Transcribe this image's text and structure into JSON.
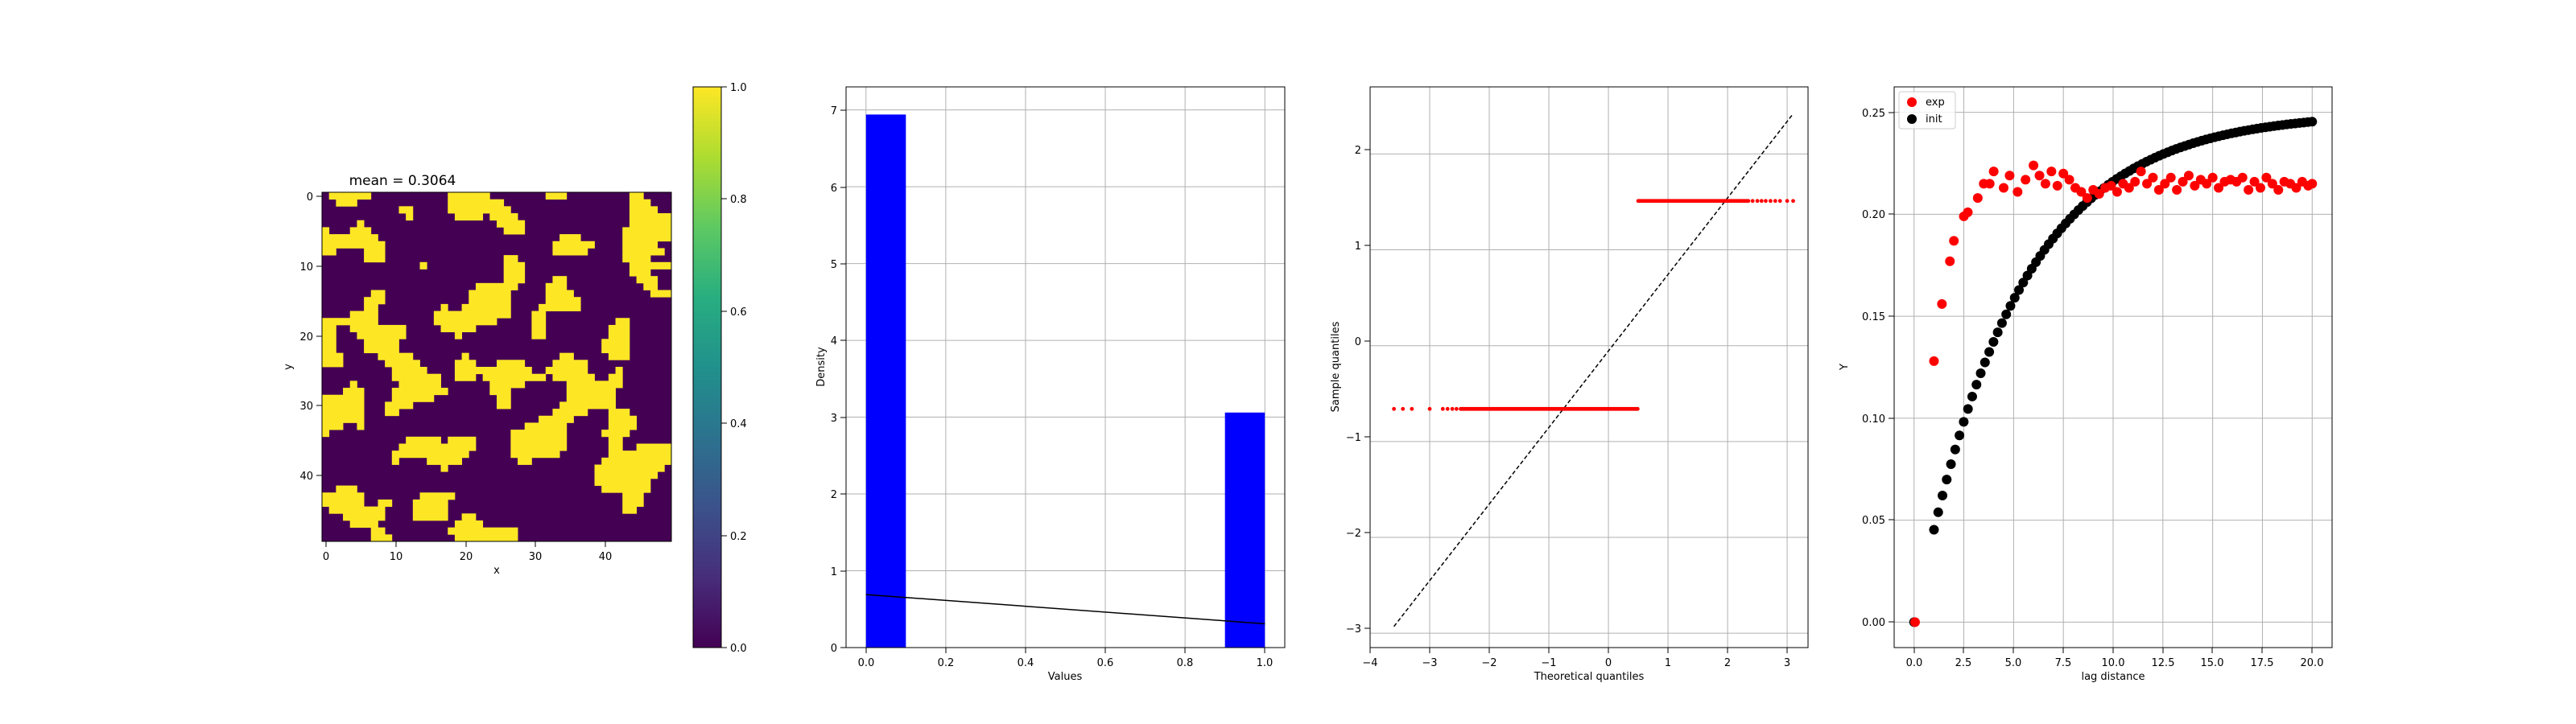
{
  "chart_data": [
    {
      "type": "heatmap",
      "title": "mean = 0.3064",
      "xlabel": "x",
      "ylabel": "y",
      "grid_size": [
        50,
        50
      ],
      "x_ticks": [
        "0",
        "10",
        "20",
        "30",
        "40"
      ],
      "y_ticks": [
        "0",
        "10",
        "20",
        "30",
        "40"
      ],
      "colormap": "viridis",
      "colorbar_ticks": [
        "0.0",
        "0.2",
        "0.4",
        "0.6",
        "0.8",
        "1.0"
      ],
      "clim": [
        0,
        1
      ],
      "values_range": [
        0,
        1
      ],
      "mean": 0.3064,
      "colors": {
        "low": "#440154",
        "high": "#fde725"
      }
    },
    {
      "type": "bar",
      "xlabel": "Values",
      "ylabel": "Density",
      "xlim": [
        -0.05,
        1.05
      ],
      "ylim": [
        0,
        7.3
      ],
      "x_ticks": [
        "0.0",
        "0.2",
        "0.4",
        "0.6",
        "0.8",
        "1.0"
      ],
      "y_ticks": [
        "0",
        "1",
        "2",
        "3",
        "4",
        "5",
        "6",
        "7"
      ],
      "bars": [
        {
          "x0": 0.0,
          "x1": 0.1,
          "value": 6.94
        },
        {
          "x0": 0.9,
          "x1": 1.0,
          "value": 3.06
        }
      ],
      "line": {
        "x": [
          0.0,
          1.0
        ],
        "y": [
          0.69,
          0.31
        ]
      },
      "grid": true,
      "colors": {
        "bar": "#0000ff",
        "line": "#000000"
      }
    },
    {
      "type": "scatter",
      "xlabel": "Theoretical quantiles",
      "ylabel": "Sample quantiles",
      "xlim": [
        -4,
        3.35
      ],
      "ylim": [
        -3.15,
        2.7
      ],
      "x_ticks": [
        "−4",
        "−3",
        "−2",
        "−1",
        "0",
        "1",
        "2",
        "3"
      ],
      "y_ticks": [
        "−3",
        "−2",
        "−1",
        "0",
        "1",
        "2"
      ],
      "low_level": -0.66,
      "high_level": 1.51,
      "low_x_range": [
        -3.6,
        0.5
      ],
      "high_x_range": [
        0.5,
        3.1
      ],
      "reference_line": {
        "x": [
          -3.6,
          3.1
        ],
        "y": [
          -2.93,
          2.42
        ]
      },
      "grid": true,
      "colors": {
        "points": "#ff0000",
        "line": "#000000"
      }
    },
    {
      "type": "scatter",
      "xlabel": "lag distance",
      "ylabel": "Y",
      "xlim": [
        -1.0,
        21.0
      ],
      "ylim": [
        -0.0125,
        0.2625
      ],
      "x_ticks": [
        "0.0",
        "2.5",
        "5.0",
        "7.5",
        "10.0",
        "12.5",
        "15.0",
        "17.5",
        "20.0"
      ],
      "y_ticks": [
        "0.00",
        "0.05",
        "0.10",
        "0.15",
        "0.20",
        "0.25"
      ],
      "legend": {
        "placement": "top-left",
        "entries": [
          "exp",
          "init"
        ]
      },
      "grid": true,
      "series": [
        {
          "name": "exp",
          "color": "#ff0000",
          "points": [
            [
              0.05,
              0.0
            ],
            [
              1.0,
              0.128
            ],
            [
              1.4,
              0.156
            ],
            [
              1.8,
              0.177
            ],
            [
              2.0,
              0.187
            ],
            [
              2.5,
              0.199
            ],
            [
              2.7,
              0.201
            ],
            [
              3.2,
              0.208
            ],
            [
              3.5,
              0.215
            ],
            [
              3.8,
              0.215
            ],
            [
              4.0,
              0.221
            ],
            [
              4.5,
              0.213
            ],
            [
              4.8,
              0.219
            ],
            [
              5.2,
              0.211
            ],
            [
              5.6,
              0.217
            ],
            [
              6.0,
              0.224
            ],
            [
              6.3,
              0.219
            ],
            [
              6.6,
              0.215
            ],
            [
              6.9,
              0.221
            ],
            [
              7.2,
              0.214
            ],
            [
              7.5,
              0.22
            ],
            [
              7.8,
              0.217
            ],
            [
              8.1,
              0.213
            ],
            [
              8.4,
              0.211
            ],
            [
              8.7,
              0.208
            ],
            [
              9.0,
              0.212
            ],
            [
              9.3,
              0.21
            ],
            [
              9.6,
              0.213
            ],
            [
              9.9,
              0.214
            ],
            [
              10.2,
              0.211
            ],
            [
              10.5,
              0.215
            ],
            [
              10.8,
              0.213
            ],
            [
              11.1,
              0.216
            ],
            [
              11.4,
              0.221
            ],
            [
              11.7,
              0.215
            ],
            [
              12.0,
              0.218
            ],
            [
              12.3,
              0.212
            ],
            [
              12.6,
              0.215
            ],
            [
              12.9,
              0.218
            ],
            [
              13.2,
              0.212
            ],
            [
              13.5,
              0.216
            ],
            [
              13.8,
              0.219
            ],
            [
              14.1,
              0.214
            ],
            [
              14.4,
              0.217
            ],
            [
              14.7,
              0.215
            ],
            [
              15.0,
              0.218
            ],
            [
              15.3,
              0.213
            ],
            [
              15.6,
              0.216
            ],
            [
              15.9,
              0.217
            ],
            [
              16.2,
              0.216
            ],
            [
              16.5,
              0.218
            ],
            [
              16.8,
              0.212
            ],
            [
              17.1,
              0.216
            ],
            [
              17.4,
              0.213
            ],
            [
              17.7,
              0.218
            ],
            [
              18.0,
              0.215
            ],
            [
              18.3,
              0.212
            ],
            [
              18.6,
              0.216
            ],
            [
              18.9,
              0.215
            ],
            [
              19.2,
              0.213
            ],
            [
              19.5,
              0.216
            ],
            [
              19.8,
              0.214
            ],
            [
              20.0,
              0.215
            ]
          ]
        },
        {
          "name": "init",
          "color": "#000000",
          "model": {
            "sill": 0.25,
            "range": 15.0,
            "x_from": 0.0,
            "x_to": 20.0,
            "n": 90
          }
        }
      ]
    }
  ]
}
